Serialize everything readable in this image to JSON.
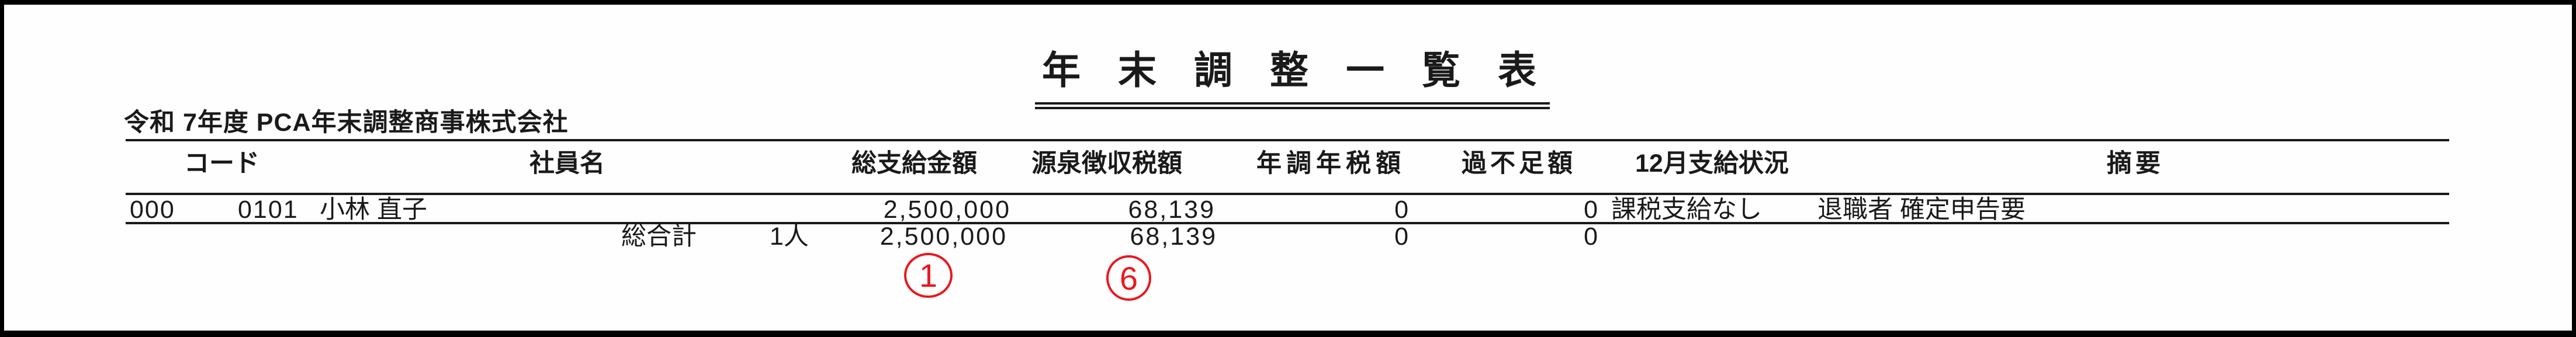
{
  "page": {
    "title": "年末調整一覧表",
    "subtitle": "令和 7年度 PCA年末調整商事株式会社",
    "colors": {
      "text": "#1a1a1a",
      "line": "#1a1a1a",
      "annotation_red": "#e8191f",
      "background": "#fefefe"
    }
  },
  "table": {
    "headers": [
      "コード",
      "社員名",
      "総支給金額",
      "源泉徴収税額",
      "年調年税額",
      "過不足額",
      "12月支給状況",
      "摘要"
    ],
    "employee_row": {
      "dept_code": "000",
      "employee_code": "0101",
      "employee_name": "小林 直子",
      "gross_pay": "2,500,000",
      "withholding_tax": "68,139",
      "annual_adjusted_tax": "0",
      "over_short_amount": "0",
      "december_payment_status": "課税支給なし",
      "remarks": "退職者 確定申告要"
    },
    "grand_total_row": {
      "label": "総合計",
      "headcount": "1人",
      "gross_pay": "2,500,000",
      "withholding_tax": "68,139",
      "annual_adjusted_tax": "0",
      "over_short_amount": "0"
    }
  },
  "annotations": {
    "circled_numbers": [
      {
        "label": "1"
      },
      {
        "label": "6"
      }
    ]
  }
}
